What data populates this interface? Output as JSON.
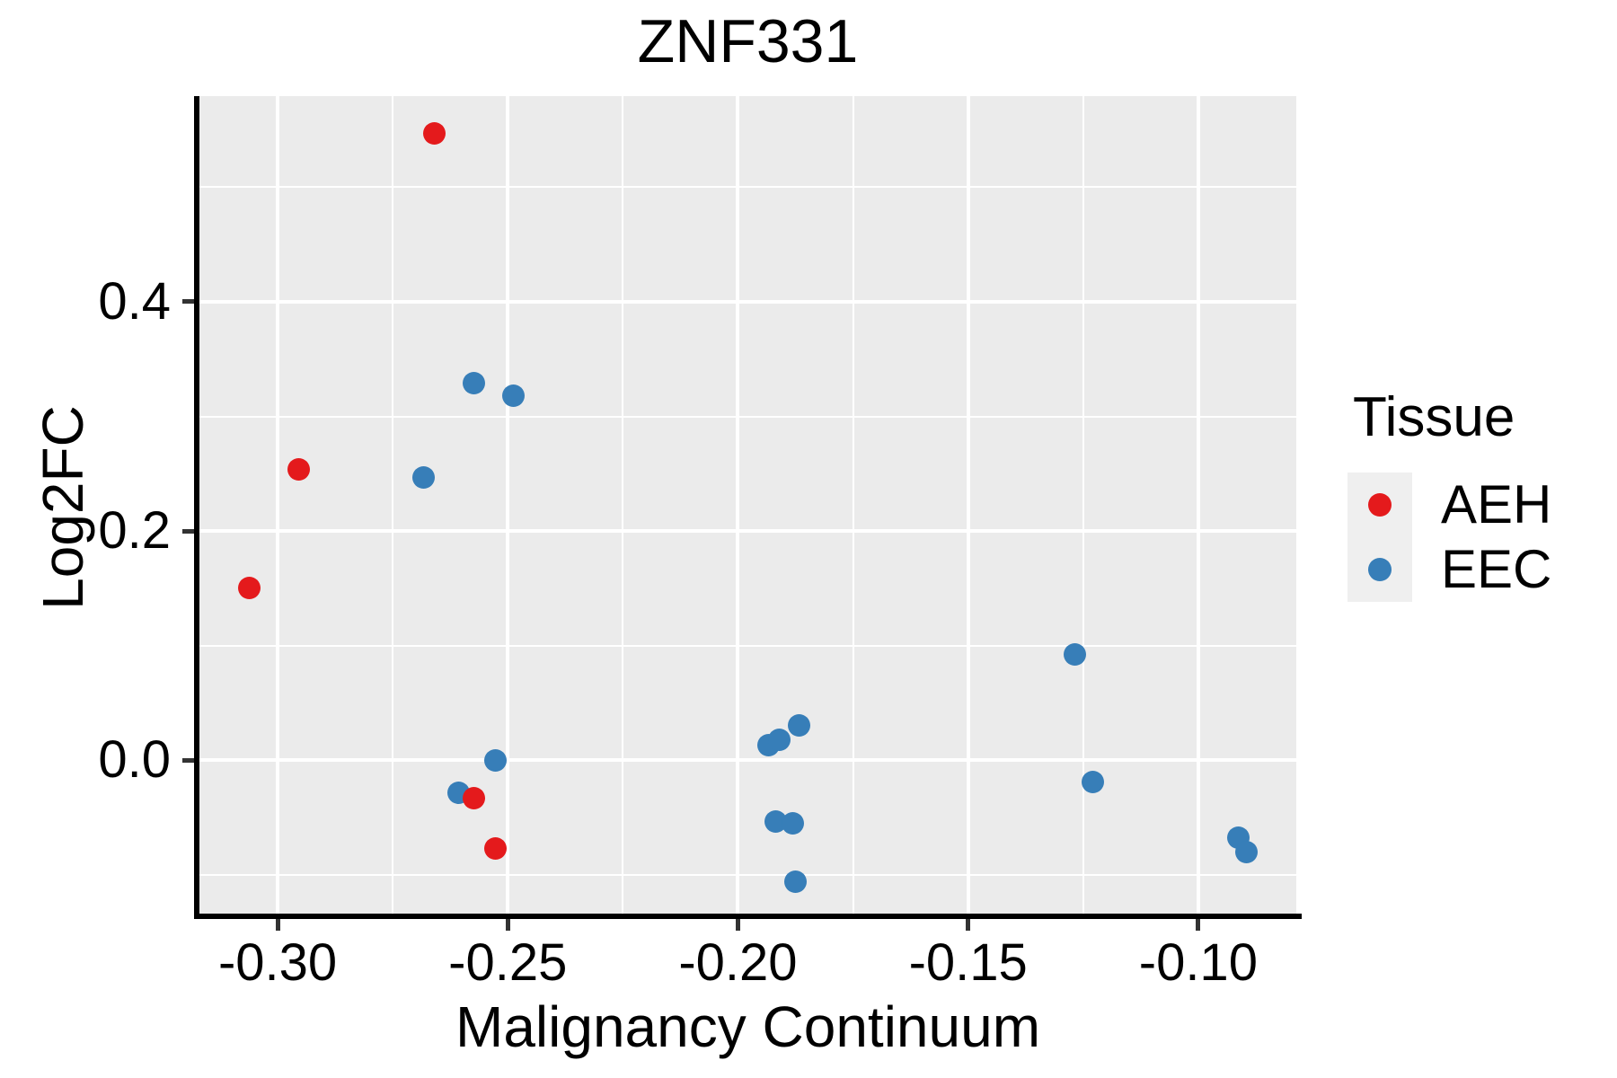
{
  "figure": {
    "title": "ZNF331",
    "background": "#ffffff"
  },
  "chart_data": {
    "type": "scatter",
    "title": "ZNF331",
    "xlabel": "Malignancy Continuum",
    "ylabel": "Log2FC",
    "xlim": [
      -0.317,
      -0.0787
    ],
    "ylim": [
      -0.1341,
      0.5796
    ],
    "x_major_ticks": [
      -0.3,
      -0.25,
      -0.2,
      -0.15,
      -0.1
    ],
    "x_tick_labels": [
      "-0.30",
      "-0.25",
      "-0.20",
      "-0.15",
      "-0.10"
    ],
    "x_minor_ticks": [
      -0.275,
      -0.225,
      -0.175,
      -0.125
    ],
    "y_major_ticks": [
      0.0,
      0.2,
      0.4
    ],
    "y_tick_labels": [
      "0.0",
      "0.2",
      "0.4"
    ],
    "y_minor_ticks": [
      -0.1,
      0.1,
      0.3,
      0.5
    ],
    "grid": true,
    "panel_background": "#ebebeb",
    "gridline_color": "#ffffff",
    "legend_position": "right",
    "series": [
      {
        "name": "EEC",
        "color": "#377eb8",
        "points": [
          {
            "x": -0.2573,
            "y": 0.329
          },
          {
            "x": -0.2487,
            "y": 0.318
          },
          {
            "x": -0.2683,
            "y": 0.247
          },
          {
            "x": -0.2526,
            "y": 0.0
          },
          {
            "x": -0.2607,
            "y": -0.029
          },
          {
            "x": -0.1933,
            "y": 0.013
          },
          {
            "x": -0.1911,
            "y": 0.018
          },
          {
            "x": -0.1868,
            "y": 0.03
          },
          {
            "x": -0.1918,
            "y": -0.054
          },
          {
            "x": -0.1881,
            "y": -0.055
          },
          {
            "x": -0.1876,
            "y": -0.106
          },
          {
            "x": -0.1269,
            "y": 0.092
          },
          {
            "x": -0.123,
            "y": -0.019
          },
          {
            "x": -0.0912,
            "y": -0.068
          },
          {
            "x": -0.0896,
            "y": -0.08
          }
        ]
      },
      {
        "name": "AEH",
        "color": "#e41a1c",
        "points": [
          {
            "x": -0.266,
            "y": 0.547
          },
          {
            "x": -0.2955,
            "y": 0.254
          },
          {
            "x": -0.3061,
            "y": 0.15
          },
          {
            "x": -0.2574,
            "y": -0.033
          },
          {
            "x": -0.2527,
            "y": -0.077
          }
        ]
      }
    ]
  },
  "legend": {
    "title": "Tissue",
    "items": [
      {
        "label": "AEH",
        "color": "#e41a1c"
      },
      {
        "label": "EEC",
        "color": "#377eb8"
      }
    ]
  }
}
